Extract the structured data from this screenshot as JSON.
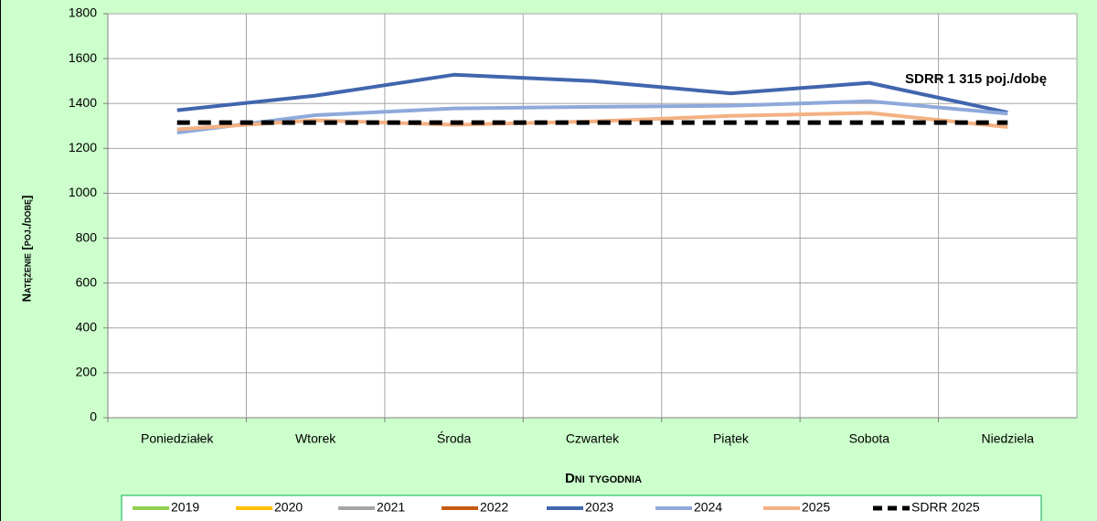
{
  "chart_data": {
    "type": "line",
    "categories": [
      "Poniedziałek",
      "Wtorek",
      "Środa",
      "Czwartek",
      "Piątek",
      "Sobota",
      "Niedziela"
    ],
    "series": [
      {
        "name": "2019",
        "color": "#92d050",
        "values": [
          null,
          null,
          null,
          null,
          null,
          null,
          null
        ]
      },
      {
        "name": "2020",
        "color": "#ffc000",
        "values": [
          null,
          null,
          null,
          null,
          null,
          null,
          null
        ]
      },
      {
        "name": "2021",
        "color": "#a5a5a5",
        "values": [
          null,
          null,
          null,
          null,
          null,
          null,
          null
        ]
      },
      {
        "name": "2022",
        "color": "#c55a11",
        "values": [
          null,
          null,
          null,
          null,
          null,
          null,
          null
        ]
      },
      {
        "name": "2023",
        "color": "#4166ae",
        "values": [
          1370,
          1435,
          1528,
          1500,
          1445,
          1492,
          1360
        ]
      },
      {
        "name": "2024",
        "color": "#8ea9db",
        "values": [
          1270,
          1348,
          1378,
          1385,
          1390,
          1410,
          1355
        ]
      },
      {
        "name": "2025",
        "color": "#f4b183",
        "values": [
          1285,
          1325,
          1305,
          1320,
          1345,
          1358,
          1295
        ]
      },
      {
        "name": "SDRR 2025",
        "color": "#000000",
        "dashed": true,
        "values": [
          1315,
          1315,
          1315,
          1315,
          1315,
          1315,
          1315
        ]
      }
    ],
    "ylim": [
      0,
      1800
    ],
    "yticks": [
      0,
      200,
      400,
      600,
      800,
      1000,
      1200,
      1400,
      1600,
      1800
    ],
    "grid": true,
    "xlabel": "Dni tygodnia",
    "ylabel": "Natężenie [poj./dobę]",
    "annotation": "SDRR 1 315 poj./dobę"
  }
}
